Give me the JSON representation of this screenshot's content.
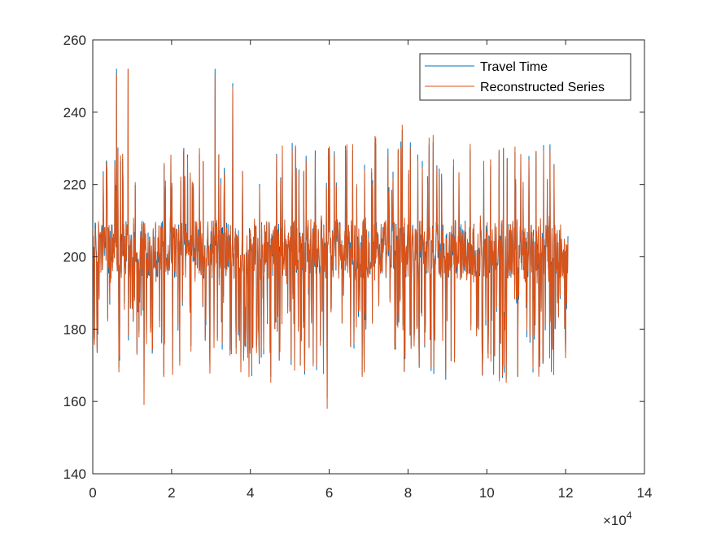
{
  "chart_data": {
    "type": "line",
    "title": "",
    "xlabel": "",
    "ylabel": "",
    "x_exponent_label": "×10",
    "x_exponent_power": "4",
    "xlim": [
      0,
      140000
    ],
    "ylim": [
      140,
      260
    ],
    "x_ticks": [
      0,
      20000,
      40000,
      60000,
      80000,
      100000,
      120000,
      140000
    ],
    "x_tick_labels": [
      "0",
      "2",
      "4",
      "6",
      "8",
      "10",
      "12",
      "14"
    ],
    "y_ticks": [
      140,
      160,
      180,
      200,
      220,
      240,
      260
    ],
    "y_tick_labels": [
      "140",
      "160",
      "180",
      "200",
      "220",
      "240",
      "260"
    ],
    "grid": false,
    "legend_position": "top-right",
    "series": [
      {
        "name": "Travel Time",
        "color": "#0072bd",
        "x_range": [
          0,
          120600
        ],
        "base": 202,
        "spread": 8,
        "min": 161,
        "max": 252
      },
      {
        "name": "Reconstructed Series",
        "color": "#d95319",
        "x_range": [
          0,
          120600
        ],
        "base": 201,
        "spread": 7,
        "min": 158,
        "max": 252
      }
    ],
    "notable_points": [
      {
        "x": 6000,
        "y": 252
      },
      {
        "x": 9000,
        "y": 252
      },
      {
        "x": 31000,
        "y": 252
      },
      {
        "x": 35500,
        "y": 248
      },
      {
        "x": 59500,
        "y": 158
      },
      {
        "x": 13000,
        "y": 159
      },
      {
        "x": 78500,
        "y": 235
      },
      {
        "x": 60000,
        "y": 230
      },
      {
        "x": 117000,
        "y": 168
      }
    ]
  }
}
